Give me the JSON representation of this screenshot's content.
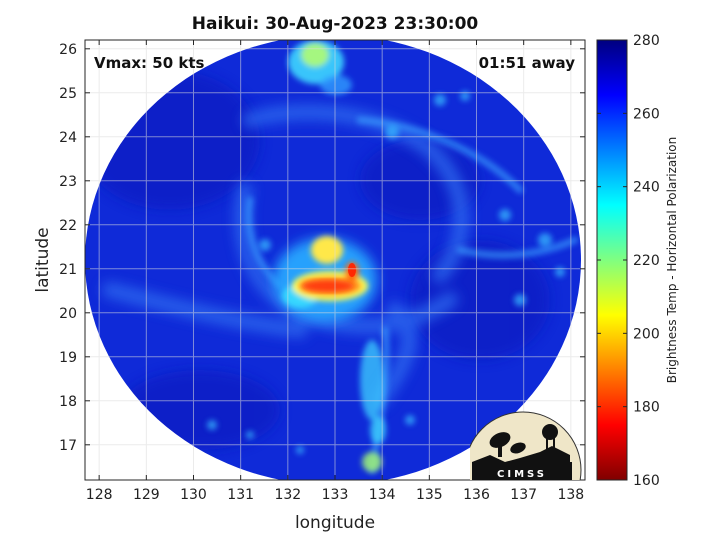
{
  "title": "Haikui: 30-Aug-2023 23:30:00",
  "vmax_label": "Vmax: 50 kts",
  "time_label": "01:51 away",
  "logo_text": "CIMSS",
  "chart_data": {
    "type": "heatmap",
    "xlabel": "longitude",
    "ylabel": "latitude",
    "xlim": [
      127.7,
      138.3
    ],
    "ylim": [
      16.2,
      26.2
    ],
    "xticks": [
      128,
      129,
      130,
      131,
      132,
      133,
      134,
      135,
      136,
      137,
      138
    ],
    "yticks": [
      17,
      18,
      19,
      20,
      21,
      22,
      23,
      24,
      25,
      26
    ],
    "grid": true,
    "storm_center": [
      132.9,
      20.7
    ],
    "eyewall_min_temp": 185,
    "colorbar": {
      "label": "Brightness Temp - Horizontal Polarization",
      "range": [
        160,
        280
      ],
      "ticks": [
        160,
        180,
        200,
        220,
        240,
        260,
        280
      ],
      "colormap": "jet"
    }
  },
  "colors": {
    "background": "#ffffff",
    "axis": "#262626",
    "grid": "#dddddd",
    "swath_base": "#0f2ad8"
  }
}
